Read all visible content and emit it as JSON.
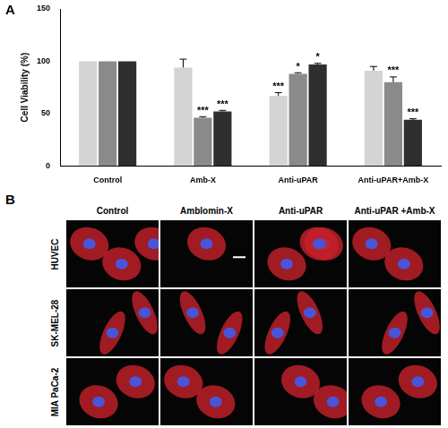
{
  "chart_data": {
    "type": "bar",
    "y_label": "Cell Viability (%)",
    "categories": [
      "Control",
      "Amb-X",
      "Anti-uPAR",
      "Anti-uPAR+Amb-X"
    ],
    "series": [
      {
        "color": "#d4d4d4",
        "values": [
          100,
          94,
          67,
          91
        ],
        "errors": [
          0,
          8,
          3,
          4
        ],
        "significance": [
          null,
          null,
          "***",
          null
        ]
      },
      {
        "color": "#8a8a8a",
        "values": [
          100,
          46,
          88,
          80
        ],
        "errors": [
          0,
          1,
          1,
          5
        ],
        "significance": [
          null,
          "***",
          "*",
          "***"
        ]
      },
      {
        "color": "#2e2e2e",
        "values": [
          100,
          52,
          97,
          44
        ],
        "errors": [
          0,
          1,
          1,
          1
        ],
        "significance": [
          null,
          "***",
          "*",
          "***"
        ]
      }
    ],
    "ylim": [
      0,
      150
    ],
    "yticks": [
      0,
      50,
      100,
      150
    ],
    "grid": false
  },
  "figure": {
    "panel_labels": [
      "A",
      "B"
    ],
    "micrographs": {
      "columns": [
        "Control",
        "Amblomin-X",
        "Anti-uPAR",
        "Anti-uPAR +Amb-X"
      ],
      "rows": [
        "HUVEC",
        "SK-MEL-28",
        "MIA PaCa-2"
      ]
    }
  }
}
